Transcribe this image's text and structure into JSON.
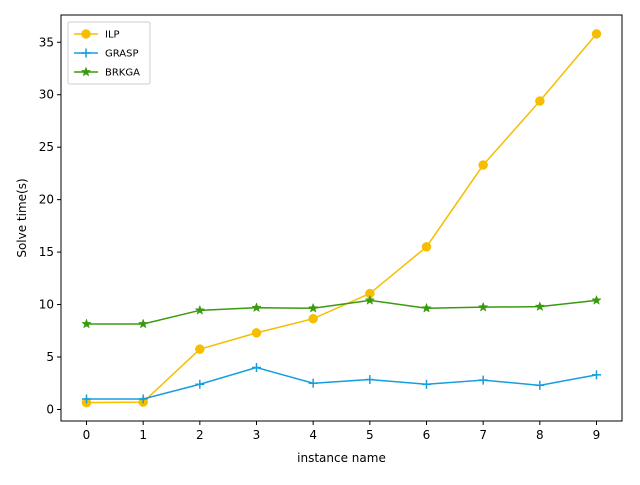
{
  "chart_data": {
    "type": "line",
    "title": "",
    "xlabel": "instance name",
    "ylabel": "Solve time(s)",
    "x": [
      0,
      1,
      2,
      3,
      4,
      5,
      6,
      7,
      8,
      9
    ],
    "x_ticks": [
      "0",
      "1",
      "2",
      "3",
      "4",
      "5",
      "6",
      "7",
      "8",
      "9"
    ],
    "y_ticks": [
      "0",
      "5",
      "10",
      "15",
      "20",
      "25",
      "30",
      "35"
    ],
    "xlim": [
      -0.45,
      9.45
    ],
    "ylim": [
      -1.1,
      37.6
    ],
    "grid": false,
    "legend_position": "top-left",
    "series": [
      {
        "name": "ILP",
        "color": "#f5be00",
        "marker": "circle",
        "values": [
          0.65,
          0.7,
          5.75,
          7.3,
          8.65,
          11.05,
          15.5,
          23.3,
          29.4,
          35.8
        ]
      },
      {
        "name": "GRASP",
        "color": "#169de0",
        "marker": "plus",
        "values": [
          1.0,
          1.0,
          2.4,
          4.0,
          2.5,
          2.85,
          2.4,
          2.8,
          2.3,
          3.3
        ]
      },
      {
        "name": "BRKGA",
        "color": "#3a9a0e",
        "marker": "star",
        "values": [
          8.15,
          8.15,
          9.45,
          9.7,
          9.65,
          10.4,
          9.65,
          9.75,
          9.8,
          10.4
        ]
      }
    ]
  }
}
